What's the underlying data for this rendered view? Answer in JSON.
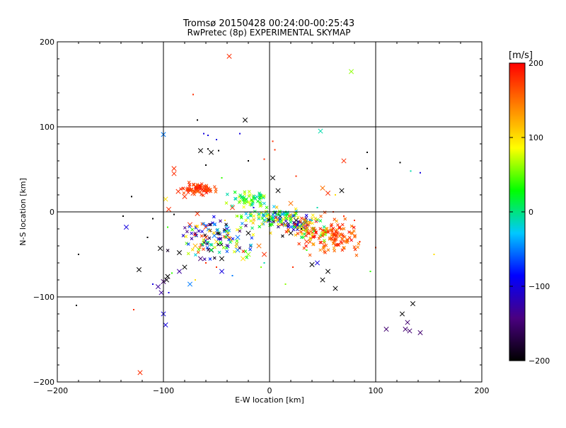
{
  "chart_data": {
    "type": "scatter",
    "title": "Tromsø 20150428 00:24:00-00:25:43",
    "subtitle": "RwPretec (8p) EXPERIMENTAL SKYMAP",
    "xlabel": "E-W location [km]",
    "ylabel": "N-S location [km]",
    "xlim": [
      -200,
      200
    ],
    "ylim": [
      -200,
      200
    ],
    "xticks": [
      -200,
      -100,
      0,
      100,
      200
    ],
    "yticks": [
      -200,
      -100,
      0,
      100,
      200
    ],
    "xtick_labels": [
      "−200",
      "−100",
      "0",
      "100",
      "200"
    ],
    "ytick_labels": [
      "200",
      "100",
      "0",
      "−100",
      "−200"
    ],
    "grid_lines_x": [
      -100,
      0,
      100
    ],
    "grid_lines_y": [
      -100,
      0,
      100
    ],
    "colorbar": {
      "label": "[m/s]",
      "range": [
        -200,
        200
      ],
      "ticks": [
        200,
        100,
        0,
        -100,
        -200
      ],
      "tick_labels": [
        "200",
        "100",
        "0",
        "−100",
        "−200"
      ],
      "colors": [
        "#000000",
        "#4a0080",
        "#0000ff",
        "#00c8ff",
        "#00ff00",
        "#ffff00",
        "#ff8000",
        "#ff0000"
      ]
    },
    "series": [
      {
        "marker": "x-large",
        "points": [
          [
            -38,
            183,
            180
          ],
          [
            77,
            165,
            60
          ],
          [
            -23,
            108,
            -200
          ],
          [
            -100,
            91,
            -50
          ],
          [
            -65,
            72,
            -200
          ],
          [
            -55,
            70,
            -200
          ],
          [
            -90,
            51,
            180
          ],
          [
            -90,
            45,
            180
          ],
          [
            -98,
            15,
            100
          ],
          [
            -95,
            3,
            180
          ],
          [
            -75,
            -15,
            180
          ],
          [
            -60,
            -30,
            180
          ],
          [
            -70,
            -40,
            120
          ],
          [
            -55,
            -45,
            -200
          ],
          [
            -45,
            -55,
            -200
          ],
          [
            -85,
            -48,
            -200
          ],
          [
            -65,
            -55,
            -150
          ],
          [
            -80,
            -65,
            -200
          ],
          [
            -85,
            -70,
            -130
          ],
          [
            -96,
            -76,
            -200
          ],
          [
            -97,
            -80,
            -200
          ],
          [
            -100,
            -82,
            -150
          ],
          [
            -105,
            -88,
            -130
          ],
          [
            -102,
            -95,
            -130
          ],
          [
            -100,
            -120,
            -100
          ],
          [
            -98,
            -133,
            -100
          ],
          [
            -123,
            -68,
            -200
          ],
          [
            -135,
            -18,
            -100
          ],
          [
            -122,
            -189,
            180
          ],
          [
            -103,
            -43,
            -200
          ],
          [
            -75,
            -85,
            -50
          ],
          [
            -45,
            -70,
            -100
          ],
          [
            -30,
            -30,
            -50
          ],
          [
            -40,
            -20,
            -100
          ],
          [
            -20,
            -25,
            -200
          ],
          [
            3,
            40,
            -200
          ],
          [
            8,
            25,
            -200
          ],
          [
            20,
            10,
            150
          ],
          [
            25,
            -10,
            -200
          ],
          [
            15,
            -15,
            -200
          ],
          [
            10,
            -5,
            -200
          ],
          [
            30,
            -20,
            150
          ],
          [
            35,
            -35,
            180
          ],
          [
            45,
            -60,
            -100
          ],
          [
            55,
            -70,
            -200
          ],
          [
            62,
            -90,
            -200
          ],
          [
            68,
            25,
            -200
          ],
          [
            70,
            60,
            180
          ],
          [
            48,
            95,
            -10
          ],
          [
            50,
            28,
            150
          ],
          [
            55,
            22,
            180
          ],
          [
            -20,
            -50,
            60
          ],
          [
            -10,
            -40,
            150
          ],
          [
            -35,
            5,
            180
          ],
          [
            -5,
            -50,
            180
          ],
          [
            125,
            -120,
            -200
          ],
          [
            135,
            -108,
            -200
          ],
          [
            130,
            -130,
            -150
          ],
          [
            132,
            -140,
            -150
          ],
          [
            128,
            -138,
            -150
          ],
          [
            142,
            -142,
            -150
          ],
          [
            110,
            -138,
            -150
          ],
          [
            20,
            -25,
            -200
          ],
          [
            40,
            -62,
            -200
          ],
          [
            50,
            -80,
            -200
          ],
          [
            -68,
            -2,
            180
          ],
          [
            -50,
            -35,
            100
          ],
          [
            -30,
            -45,
            -50
          ],
          [
            -5,
            -5,
            -50
          ],
          [
            0,
            -10,
            -100
          ],
          [
            -58,
            25,
            180
          ],
          [
            -62,
            28,
            180
          ],
          [
            -72,
            22,
            180
          ],
          [
            -80,
            18,
            180
          ],
          [
            -86,
            24,
            180
          ],
          [
            -60,
            -18,
            180
          ],
          [
            -52,
            -28,
            -50
          ],
          [
            -25,
            -55,
            100
          ]
        ]
      },
      {
        "marker": "x-small",
        "cluster": true,
        "seed": 71
      },
      {
        "marker": "dot",
        "points": [
          [
            -72,
            138,
            180
          ],
          [
            -68,
            108,
            -200
          ],
          [
            -62,
            92,
            -100
          ],
          [
            -58,
            90,
            -100
          ],
          [
            -50,
            85,
            -100
          ],
          [
            -28,
            92,
            -100
          ],
          [
            3,
            83,
            180
          ],
          [
            5,
            73,
            180
          ],
          [
            -58,
            74,
            -200
          ],
          [
            -48,
            72,
            -200
          ],
          [
            92,
            70,
            -200
          ],
          [
            123,
            58,
            -200
          ],
          [
            133,
            48,
            -10
          ],
          [
            142,
            46,
            -100
          ],
          [
            92,
            51,
            -200
          ],
          [
            -130,
            18,
            -200
          ],
          [
            -138,
            -5,
            -200
          ],
          [
            -110,
            -8,
            -200
          ],
          [
            -180,
            -50,
            -200
          ],
          [
            -182,
            -110,
            -200
          ],
          [
            -128,
            -115,
            180
          ],
          [
            155,
            -50,
            100
          ],
          [
            95,
            -70,
            40
          ],
          [
            100,
            -42,
            180
          ],
          [
            15,
            -85,
            60
          ],
          [
            22,
            -65,
            180
          ],
          [
            35,
            -45,
            40
          ],
          [
            -5,
            -60,
            -10
          ],
          [
            -8,
            -65,
            60
          ],
          [
            -50,
            -65,
            180
          ],
          [
            -60,
            -60,
            180
          ],
          [
            -35,
            -75,
            -50
          ],
          [
            -70,
            -80,
            100
          ],
          [
            -95,
            -95,
            -100
          ],
          [
            -92,
            -72,
            40
          ],
          [
            -110,
            -85,
            -100
          ],
          [
            -115,
            -30,
            -200
          ],
          [
            -96,
            -18,
            40
          ],
          [
            -90,
            -3,
            -200
          ],
          [
            -45,
            40,
            40
          ],
          [
            -60,
            55,
            -200
          ],
          [
            -20,
            60,
            -200
          ],
          [
            -5,
            62,
            180
          ],
          [
            25,
            42,
            180
          ],
          [
            30,
            -20,
            -200
          ],
          [
            40,
            -10,
            -10
          ],
          [
            60,
            0,
            180
          ],
          [
            80,
            -10,
            180
          ],
          [
            85,
            -35,
            180
          ],
          [
            70,
            -5,
            180
          ],
          [
            62,
            20,
            100
          ],
          [
            45,
            5,
            -10
          ],
          [
            15,
            0,
            40
          ],
          [
            -15,
            5,
            -100
          ],
          [
            -30,
            -5,
            60
          ],
          [
            -42,
            -10,
            100
          ]
        ]
      }
    ]
  }
}
